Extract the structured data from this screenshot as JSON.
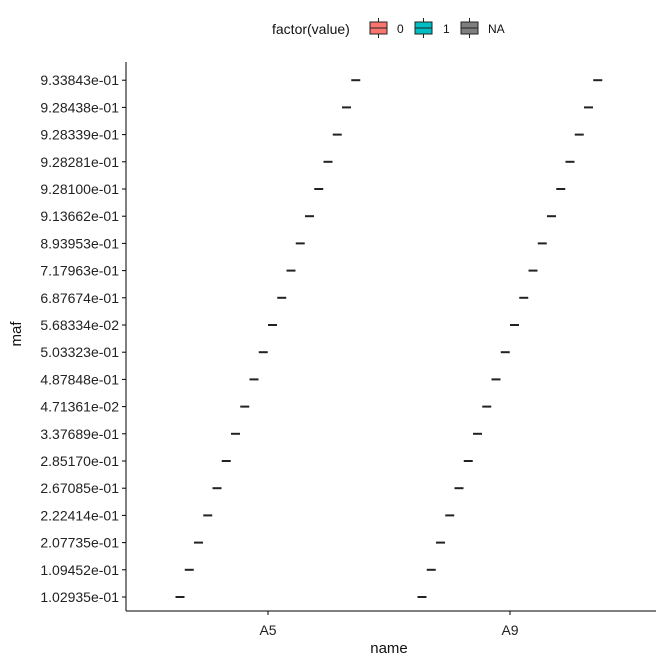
{
  "chart_data": {
    "type": "boxplot",
    "xlabel": "name",
    "ylabel": "maf",
    "categories": [
      "A5",
      "A9"
    ],
    "y_categories": [
      "1.02935e-01",
      "1.09452e-01",
      "2.07735e-01",
      "2.22414e-01",
      "2.67085e-01",
      "2.85170e-01",
      "3.37689e-01",
      "4.71361e-02",
      "4.87848e-01",
      "5.03323e-01",
      "5.68334e-02",
      "6.87674e-01",
      "7.17963e-01",
      "8.93953e-01",
      "9.13662e-01",
      "9.28100e-01",
      "9.28281e-01",
      "9.28339e-01",
      "9.28438e-01",
      "9.33843e-01"
    ],
    "legend": {
      "title": "factor(value)",
      "position": "top",
      "entries": [
        {
          "label": "0",
          "color": "#F8766D"
        },
        {
          "label": "1",
          "color": "#00BFC4"
        },
        {
          "label": "NA",
          "color": "#7F7F7F"
        }
      ]
    },
    "series": [
      {
        "category": "A5",
        "group": "NA",
        "y_values": [
          "1.02935e-01",
          "1.09452e-01",
          "2.07735e-01",
          "2.22414e-01",
          "2.67085e-01",
          "2.85170e-01",
          "3.37689e-01",
          "4.71361e-02",
          "4.87848e-01",
          "5.03323e-01",
          "5.68334e-02",
          "6.87674e-01",
          "7.17963e-01",
          "8.93953e-01",
          "9.13662e-01",
          "9.28100e-01",
          "9.28281e-01",
          "9.28339e-01",
          "9.28438e-01",
          "9.33843e-01"
        ]
      },
      {
        "category": "A9",
        "group": "NA",
        "y_values": [
          "1.02935e-01",
          "1.09452e-01",
          "2.07735e-01",
          "2.22414e-01",
          "2.67085e-01",
          "2.85170e-01",
          "3.37689e-01",
          "4.71361e-02",
          "4.87848e-01",
          "5.03323e-01",
          "5.68334e-02",
          "6.87674e-01",
          "7.17963e-01",
          "8.93953e-01",
          "9.13662e-01",
          "9.28100e-01",
          "9.28281e-01",
          "9.28339e-01",
          "9.28438e-01",
          "9.33843e-01"
        ]
      }
    ],
    "grid": false,
    "box_color": "#222222"
  }
}
